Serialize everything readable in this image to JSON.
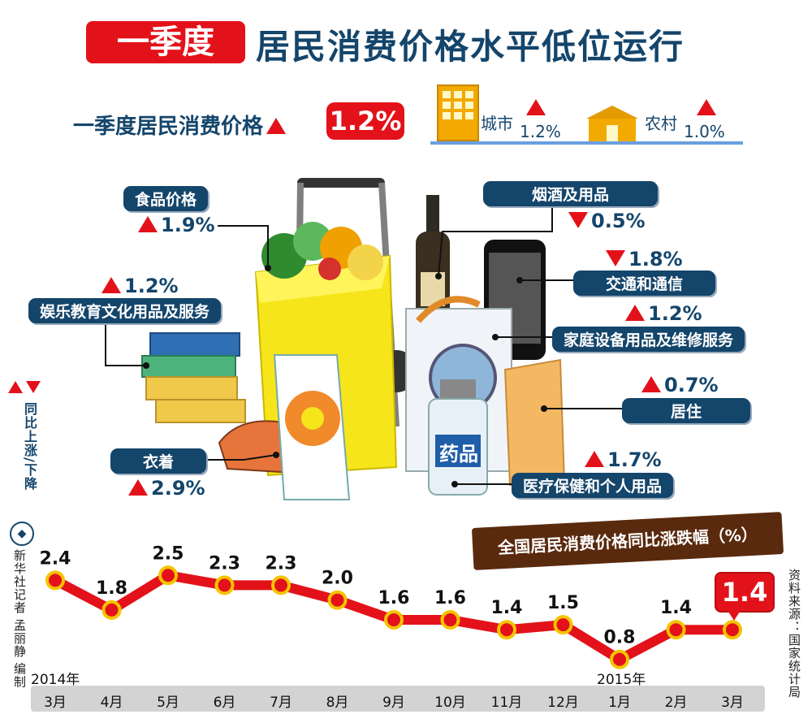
{
  "header": {
    "tag": "一季度",
    "title": "居民消费价格水平低位运行"
  },
  "summary": {
    "label": "一季度居民消费价格",
    "value": "1.2%",
    "city_label": "城市",
    "city_value": "1.2%",
    "rural_label": "农村",
    "rural_value": "1.0%"
  },
  "categories": [
    {
      "name": "食品价格",
      "change": "1.9%",
      "direction": "up"
    },
    {
      "name": "烟酒及用品",
      "change": "0.5%",
      "direction": "down"
    },
    {
      "name": "交通和通信",
      "change": "1.8%",
      "direction": "down"
    },
    {
      "name": "家庭设备用品及维修服务",
      "change": "1.2%",
      "direction": "up"
    },
    {
      "name": "娱乐教育文化用品及服务",
      "change": "1.2%",
      "direction": "up"
    },
    {
      "name": "居住",
      "change": "0.7%",
      "direction": "up"
    },
    {
      "name": "衣着",
      "change": "2.9%",
      "direction": "up"
    },
    {
      "name": "医疗保健和个人用品",
      "change": "1.7%",
      "direction": "up"
    }
  ],
  "illustration": {
    "medicine_label": "药品"
  },
  "legend": {
    "text": "同比上涨/下降"
  },
  "credits": {
    "author": "新华社记者 孟丽静 编制",
    "source": "资料来源：国家统计局"
  },
  "colors": {
    "accent_red": "#e3121a",
    "navy": "#14456b",
    "line_red": "#e3121a",
    "marker_yellow": "#f5c400",
    "title_brown": "#5a2a0e"
  },
  "chart_data": {
    "type": "line",
    "title": "全国居民消费价格同比涨跌幅（%）",
    "categories": [
      "3月",
      "4月",
      "5月",
      "6月",
      "7月",
      "8月",
      "9月",
      "10月",
      "11月",
      "12月",
      "1月",
      "2月",
      "3月"
    ],
    "year_labels": {
      "start": "2014年",
      "mid": "2015年"
    },
    "values": [
      2.4,
      1.8,
      2.5,
      2.3,
      2.3,
      2.0,
      1.6,
      1.6,
      1.4,
      1.5,
      0.8,
      1.4,
      1.4
    ],
    "highlight_last": "1.4",
    "ylim": [
      0.5,
      2.8
    ]
  }
}
